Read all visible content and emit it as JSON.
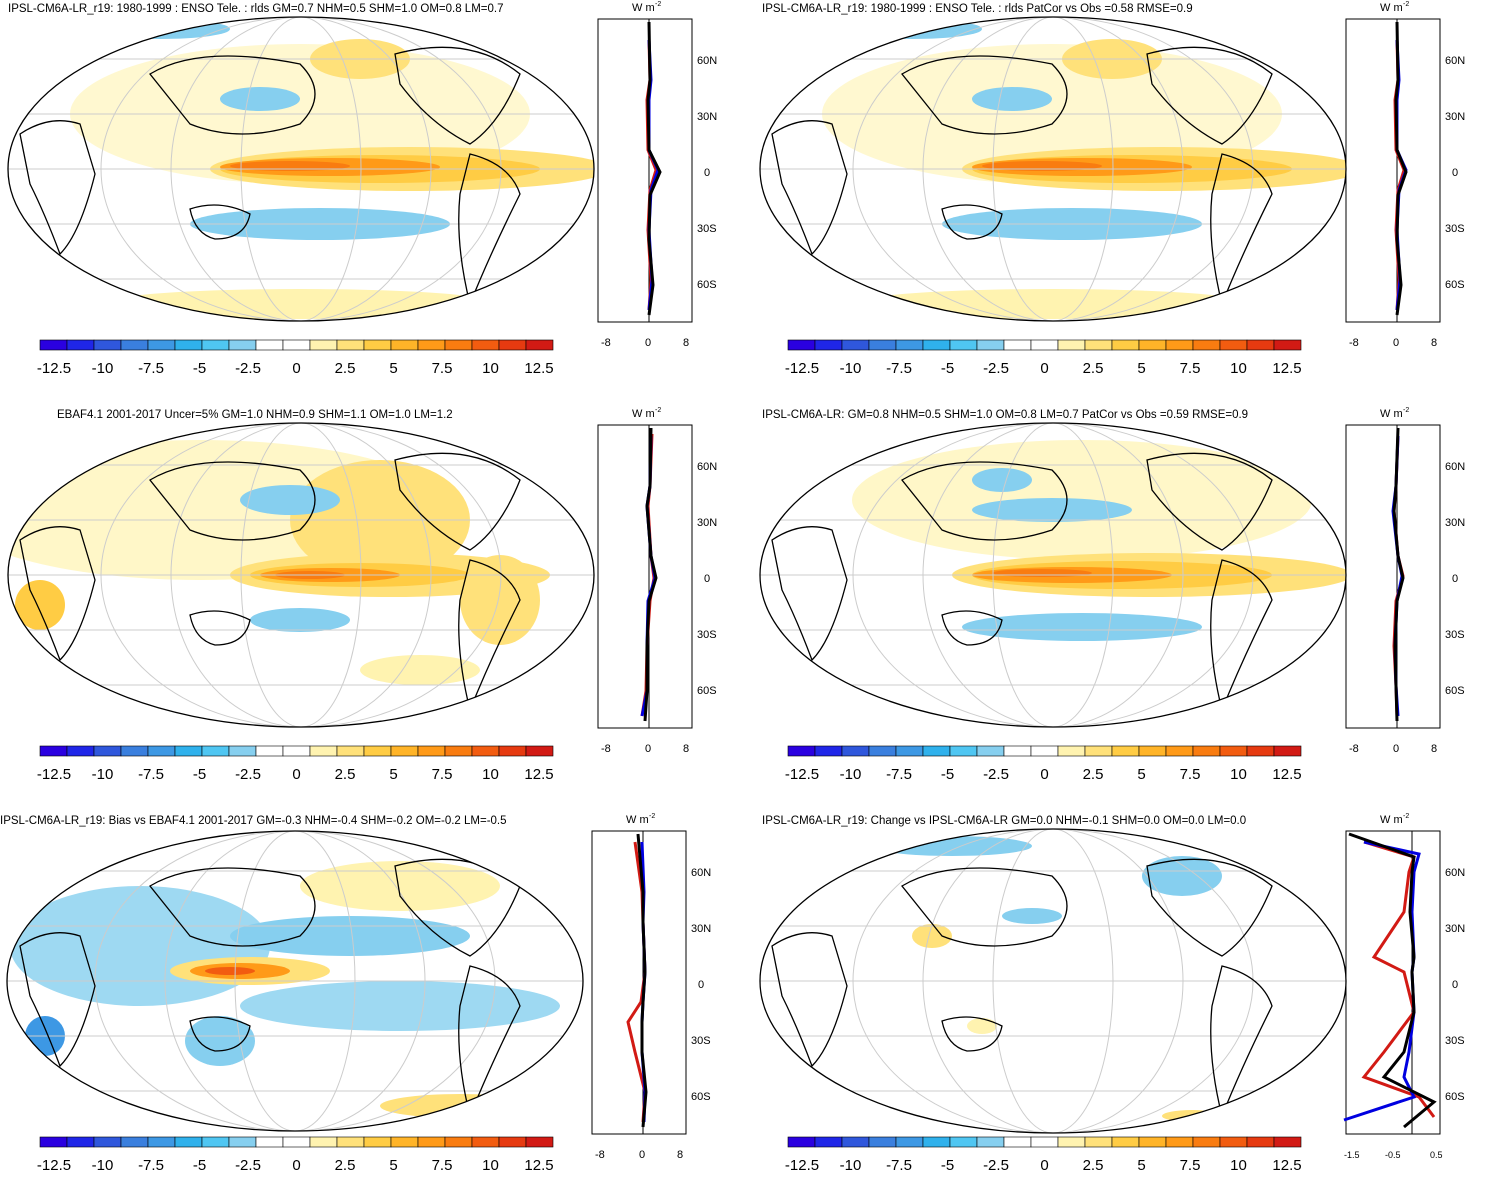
{
  "colorbar": {
    "colors": [
      "#2a00e0",
      "#1f26e8",
      "#2f57dc",
      "#3a7fde",
      "#3d98e4",
      "#2fb1ec",
      "#4fc6f2",
      "#86cfef",
      "#ffffff",
      "#ffffff",
      "#fff3b0",
      "#ffe17a",
      "#ffcc44",
      "#ffb428",
      "#ff9a18",
      "#f97c10",
      "#f25c10",
      "#e63a10",
      "#d21a14"
    ],
    "labels": [
      "-12.5",
      "-10",
      "-7.5",
      "-5",
      "-2.5",
      "0",
      "2.5",
      "5",
      "7.5",
      "10",
      "12.5"
    ]
  },
  "zonal_axis": {
    "lat_labels": [
      "60N",
      "30N",
      "0",
      "30S",
      "60S"
    ],
    "unit_label": "W m",
    "unit_exp": "-2"
  },
  "panels": [
    {
      "title": "IPSL-CM6A-LR_r19: 1980-1999 : ENSO Tele. : rlds GM=0.7 NHM=0.5 SHM=1.0 OM=0.8 LM=0.7",
      "x_ticks": [
        "-8",
        "0",
        "8"
      ]
    },
    {
      "title": "IPSL-CM6A-LR_r19: 1980-1999 : ENSO Tele. : rlds PatCor vs Obs =0.58 RMSE=0.9",
      "x_ticks": [
        "-8",
        "0",
        "8"
      ]
    },
    {
      "title": "EBAF4.1 2001-2017 Uncer=5% GM=1.0 NHM=0.9 SHM=1.1 OM=1.0 LM=1.2",
      "x_ticks": [
        "-8",
        "0",
        "8"
      ]
    },
    {
      "title": "IPSL-CM6A-LR: GM=0.8 NHM=0.5 SHM=1.0 OM=0.8 LM=0.7 PatCor vs Obs =0.59 RMSE=0.9",
      "x_ticks": [
        "-8",
        "0",
        "8"
      ]
    },
    {
      "title": "IPSL-CM6A-LR_r19: Bias vs EBAF4.1 2001-2017 GM=-0.3 NHM=-0.4 SHM=-0.2 OM=-0.2 LM=-0.5",
      "x_ticks": [
        "-8",
        "0",
        "8"
      ]
    },
    {
      "title": "IPSL-CM6A-LR_r19: Change vs IPSL-CM6A-LR GM=0.0 NHM=-0.1 SHM=0.0 OM=0.0 LM=0.0",
      "x_ticks": [
        "-1.5",
        "-0.5",
        "0.5"
      ]
    }
  ]
}
